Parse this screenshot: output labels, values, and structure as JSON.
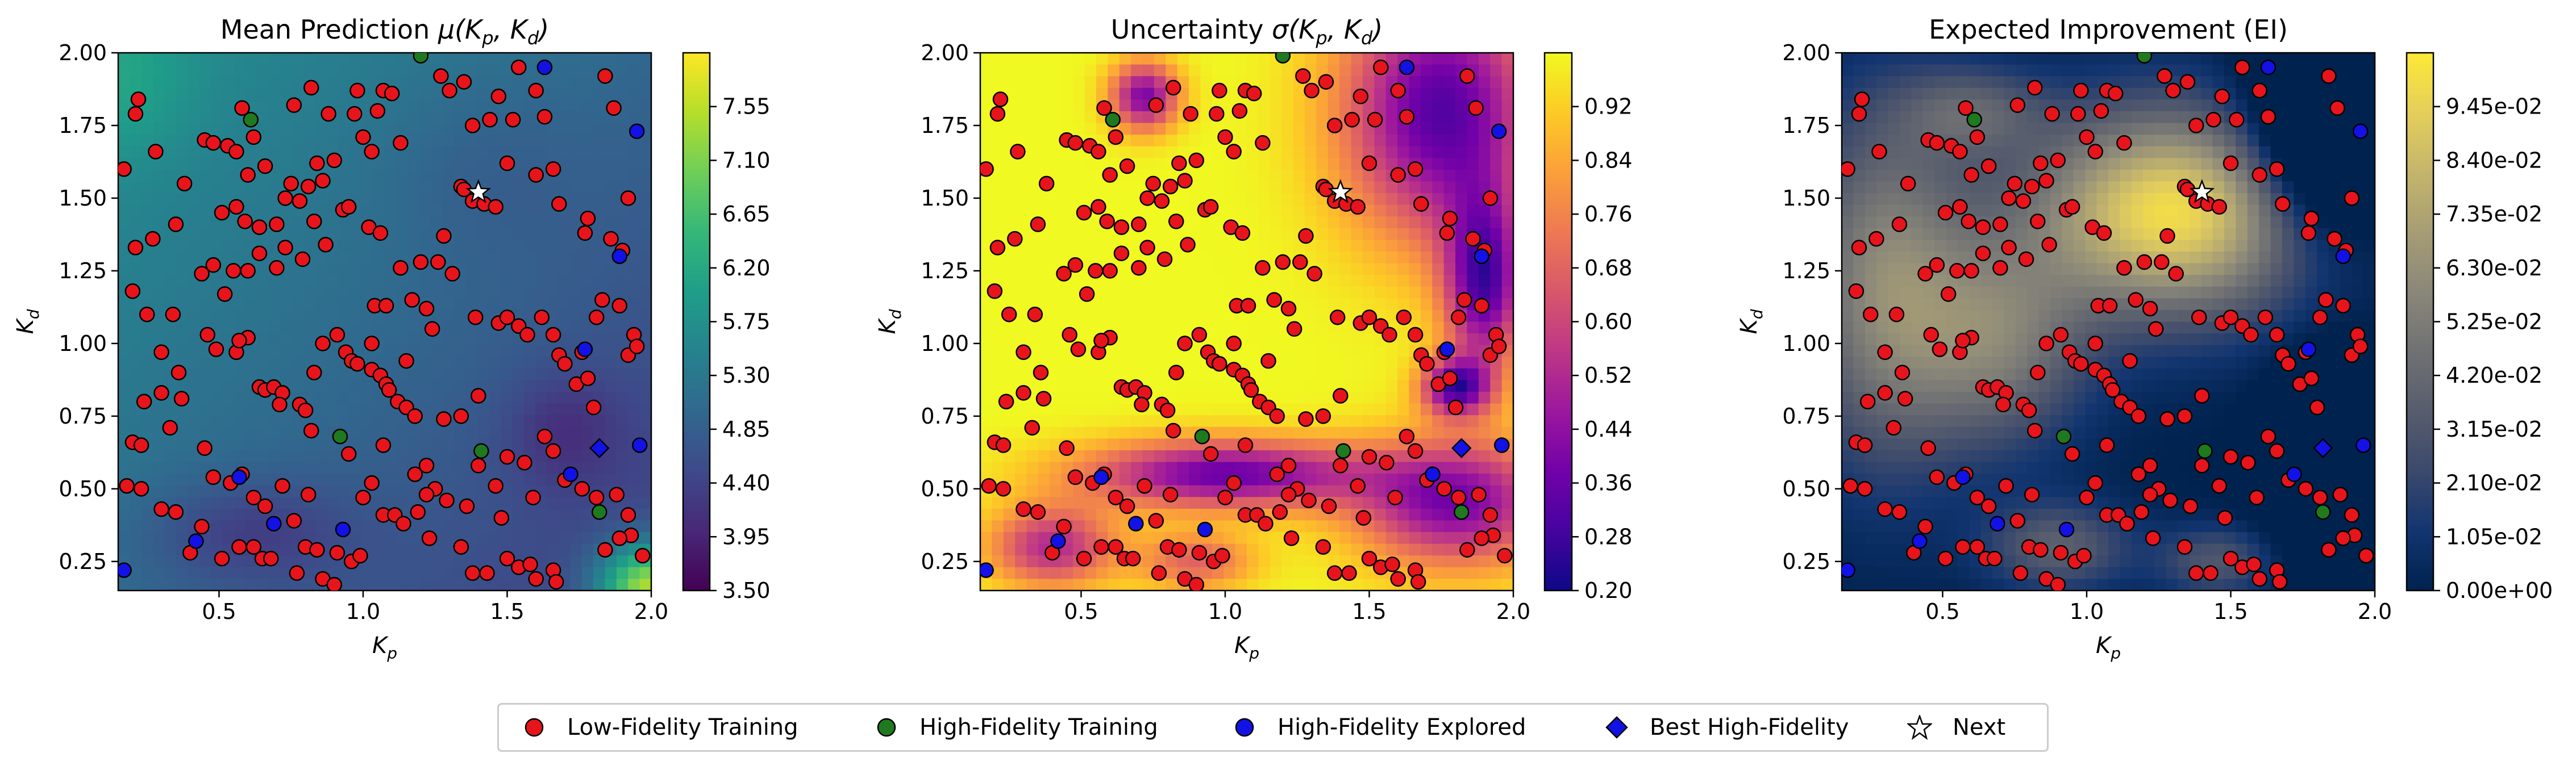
{
  "chart_data": [
    {
      "type": "heatmap",
      "title": "Mean Prediction μ(K_p, K_d)",
      "title_main": "Mean Prediction ",
      "title_math": "μ(K",
      "xlabel": "K_p",
      "ylabel": "K_d",
      "xlim": [
        0.15,
        2.0
      ],
      "ylim": [
        0.15,
        2.0
      ],
      "xticks": [
        "0.5",
        "1.0",
        "1.5",
        "2.0"
      ],
      "yticks": [
        "0.25",
        "0.50",
        "0.75",
        "1.00",
        "1.25",
        "1.50",
        "1.75",
        "2.00"
      ],
      "colormap": "viridis",
      "colorbar_range": [
        3.5,
        8.0
      ],
      "colorbar_ticks": [
        "3.50",
        "3.95",
        "4.40",
        "4.85",
        "5.30",
        "5.75",
        "6.20",
        "6.65",
        "7.10",
        "7.55"
      ]
    },
    {
      "type": "heatmap",
      "title": "Uncertainty σ(K_p, K_d)",
      "title_main": "Uncertainty ",
      "title_math": "σ(K",
      "xlabel": "K_p",
      "ylabel": "K_d",
      "xlim": [
        0.15,
        2.0
      ],
      "ylim": [
        0.15,
        2.0
      ],
      "xticks": [
        "0.5",
        "1.0",
        "1.5",
        "2.0"
      ],
      "yticks": [
        "0.25",
        "0.50",
        "0.75",
        "1.00",
        "1.25",
        "1.50",
        "1.75",
        "2.00"
      ],
      "colormap": "plasma",
      "colorbar_range": [
        0.2,
        1.0
      ],
      "colorbar_ticks": [
        "0.20",
        "0.28",
        "0.36",
        "0.44",
        "0.52",
        "0.60",
        "0.68",
        "0.76",
        "0.84",
        "0.92"
      ]
    },
    {
      "type": "heatmap",
      "title": "Expected Improvement (EI)",
      "title_main": "Expected Improvement (EI)",
      "title_math": "",
      "xlabel": "K_p",
      "ylabel": "K_d",
      "xlim": [
        0.15,
        2.0
      ],
      "ylim": [
        0.15,
        2.0
      ],
      "xticks": [
        "0.5",
        "1.0",
        "1.5",
        "2.0"
      ],
      "yticks": [
        "0.25",
        "0.50",
        "0.75",
        "1.00",
        "1.25",
        "1.50",
        "1.75",
        "2.00"
      ],
      "colormap": "cividis",
      "colorbar_range": [
        0.0,
        0.105
      ],
      "colorbar_ticks": [
        "0.00e+00",
        "1.05e-02",
        "2.10e-02",
        "3.15e-02",
        "4.20e-02",
        "5.25e-02",
        "6.30e-02",
        "7.35e-02",
        "8.40e-02",
        "9.45e-02"
      ]
    }
  ],
  "points": {
    "low_fidelity": [
      [
        0.17,
        1.6
      ],
      [
        0.21,
        1.79
      ],
      [
        0.22,
        1.84
      ],
      [
        0.28,
        1.66
      ],
      [
        0.35,
        1.41
      ],
      [
        0.21,
        1.33
      ],
      [
        0.2,
        1.18
      ],
      [
        0.25,
        1.1
      ],
      [
        0.34,
        1.1
      ],
      [
        0.27,
        1.36
      ],
      [
        0.3,
        0.97
      ],
      [
        0.36,
        0.9
      ],
      [
        0.24,
        0.8
      ],
      [
        0.3,
        0.83
      ],
      [
        0.37,
        0.81
      ],
      [
        0.33,
        0.71
      ],
      [
        0.45,
        0.64
      ],
      [
        0.48,
        0.54
      ],
      [
        0.2,
        0.66
      ],
      [
        0.23,
        0.65
      ],
      [
        0.18,
        0.51
      ],
      [
        0.23,
        0.5
      ],
      [
        0.3,
        0.43
      ],
      [
        0.35,
        0.42
      ],
      [
        0.4,
        0.28
      ],
      [
        0.44,
        0.37
      ],
      [
        0.45,
        1.7
      ],
      [
        0.48,
        1.69
      ],
      [
        0.53,
        1.68
      ],
      [
        0.56,
        1.66
      ],
      [
        0.58,
        1.81
      ],
      [
        0.6,
        1.58
      ],
      [
        0.62,
        1.71
      ],
      [
        0.51,
        1.45
      ],
      [
        0.56,
        1.47
      ],
      [
        0.59,
        1.42
      ],
      [
        0.64,
        1.4
      ],
      [
        0.7,
        1.41
      ],
      [
        0.73,
        1.5
      ],
      [
        0.75,
        1.55
      ],
      [
        0.78,
        1.49
      ],
      [
        0.81,
        1.54
      ],
      [
        0.86,
        1.56
      ],
      [
        0.84,
        1.62
      ],
      [
        0.76,
        1.82
      ],
      [
        0.82,
        1.88
      ],
      [
        0.88,
        1.79
      ],
      [
        0.9,
        1.63
      ],
      [
        0.97,
        1.79
      ],
      [
        1.0,
        1.71
      ],
      [
        1.03,
        1.66
      ],
      [
        1.05,
        1.8
      ],
      [
        1.07,
        1.87
      ],
      [
        1.1,
        1.86
      ],
      [
        0.98,
        1.87
      ],
      [
        1.13,
        1.69
      ],
      [
        0.48,
        1.27
      ],
      [
        0.52,
        1.17
      ],
      [
        0.55,
        1.25
      ],
      [
        0.6,
        1.25
      ],
      [
        0.64,
        1.31
      ],
      [
        0.7,
        1.26
      ],
      [
        0.73,
        1.33
      ],
      [
        0.79,
        1.29
      ],
      [
        0.83,
        1.42
      ],
      [
        0.87,
        1.34
      ],
      [
        0.93,
        1.46
      ],
      [
        0.95,
        1.47
      ],
      [
        1.02,
        1.4
      ],
      [
        1.06,
        1.38
      ],
      [
        1.13,
        1.26
      ],
      [
        1.2,
        1.28
      ],
      [
        1.26,
        1.28
      ],
      [
        1.28,
        1.37
      ],
      [
        1.34,
        1.54
      ],
      [
        1.38,
        1.49
      ],
      [
        1.42,
        1.48
      ],
      [
        1.46,
        1.47
      ],
      [
        1.38,
        1.75
      ],
      [
        1.44,
        1.77
      ],
      [
        1.5,
        1.62
      ],
      [
        1.52,
        1.77
      ],
      [
        1.6,
        1.58
      ],
      [
        1.66,
        1.6
      ],
      [
        1.63,
        1.78
      ],
      [
        1.6,
        1.87
      ],
      [
        1.35,
        1.9
      ],
      [
        1.27,
        1.92
      ],
      [
        1.3,
        1.87
      ],
      [
        1.47,
        1.85
      ],
      [
        1.54,
        1.95
      ],
      [
        1.84,
        1.92
      ],
      [
        1.87,
        1.81
      ],
      [
        1.92,
        1.5
      ],
      [
        1.68,
        1.48
      ],
      [
        1.78,
        1.43
      ],
      [
        1.86,
        1.36
      ],
      [
        1.9,
        1.32
      ],
      [
        1.77,
        1.38
      ],
      [
        0.46,
        1.03
      ],
      [
        0.49,
        0.98
      ],
      [
        0.56,
        0.97
      ],
      [
        0.6,
        1.02
      ],
      [
        0.64,
        0.85
      ],
      [
        0.66,
        0.84
      ],
      [
        0.69,
        0.85
      ],
      [
        0.72,
        0.83
      ],
      [
        0.71,
        0.79
      ],
      [
        0.78,
        0.79
      ],
      [
        0.8,
        0.77
      ],
      [
        0.83,
        0.9
      ],
      [
        0.86,
        1.0
      ],
      [
        0.91,
        1.03
      ],
      [
        0.94,
        0.97
      ],
      [
        0.96,
        0.94
      ],
      [
        0.98,
        0.93
      ],
      [
        1.03,
        0.91
      ],
      [
        1.06,
        0.89
      ],
      [
        1.08,
        0.86
      ],
      [
        1.09,
        0.84
      ],
      [
        1.12,
        0.8
      ],
      [
        1.15,
        0.78
      ],
      [
        1.18,
        0.75
      ],
      [
        1.04,
        1.13
      ],
      [
        1.08,
        1.13
      ],
      [
        1.17,
        1.15
      ],
      [
        1.22,
        1.12
      ],
      [
        1.24,
        1.05
      ],
      [
        1.31,
        1.24
      ],
      [
        1.39,
        1.09
      ],
      [
        1.47,
        1.07
      ],
      [
        1.5,
        1.09
      ],
      [
        1.54,
        1.06
      ],
      [
        1.57,
        1.03
      ],
      [
        1.62,
        1.09
      ],
      [
        1.66,
        1.03
      ],
      [
        1.68,
        0.96
      ],
      [
        1.7,
        0.93
      ],
      [
        1.74,
        0.86
      ],
      [
        1.78,
        0.88
      ],
      [
        1.8,
        0.78
      ],
      [
        1.81,
        1.09
      ],
      [
        1.83,
        1.15
      ],
      [
        1.89,
        1.13
      ],
      [
        1.94,
        1.03
      ],
      [
        1.92,
        0.96
      ],
      [
        0.58,
        0.55
      ],
      [
        0.54,
        0.52
      ],
      [
        0.62,
        0.47
      ],
      [
        0.66,
        0.44
      ],
      [
        0.72,
        0.51
      ],
      [
        0.81,
        0.48
      ],
      [
        0.76,
        0.39
      ],
      [
        0.8,
        0.3
      ],
      [
        0.84,
        0.29
      ],
      [
        0.91,
        0.28
      ],
      [
        0.96,
        0.25
      ],
      [
        0.99,
        0.27
      ],
      [
        0.51,
        0.26
      ],
      [
        0.57,
        0.3
      ],
      [
        0.62,
        0.3
      ],
      [
        0.65,
        0.26
      ],
      [
        0.68,
        0.26
      ],
      [
        0.77,
        0.21
      ],
      [
        0.86,
        0.19
      ],
      [
        0.9,
        0.17
      ],
      [
        1.07,
        0.41
      ],
      [
        1.11,
        0.41
      ],
      [
        1.14,
        0.38
      ],
      [
        1.19,
        0.42
      ],
      [
        1.25,
        0.5
      ],
      [
        1.29,
        0.46
      ],
      [
        1.23,
        0.33
      ],
      [
        1.34,
        0.3
      ],
      [
        1.38,
        0.21
      ],
      [
        1.43,
        0.21
      ],
      [
        1.5,
        0.26
      ],
      [
        1.54,
        0.23
      ],
      [
        1.58,
        0.24
      ],
      [
        1.6,
        0.19
      ],
      [
        1.66,
        0.22
      ],
      [
        1.48,
        0.4
      ],
      [
        1.46,
        0.51
      ],
      [
        1.4,
        0.58
      ],
      [
        1.5,
        0.61
      ],
      [
        1.56,
        0.59
      ],
      [
        1.63,
        0.68
      ],
      [
        1.66,
        0.63
      ],
      [
        1.7,
        0.53
      ],
      [
        1.76,
        0.5
      ],
      [
        1.81,
        0.47
      ],
      [
        1.88,
        0.48
      ],
      [
        1.92,
        0.41
      ],
      [
        1.93,
        0.34
      ],
      [
        1.89,
        0.33
      ],
      [
        1.84,
        0.29
      ],
      [
        1.97,
        0.27
      ],
      [
        1.4,
        0.82
      ],
      [
        1.34,
        0.75
      ],
      [
        1.28,
        0.74
      ],
      [
        1.22,
        0.58
      ],
      [
        1.18,
        0.55
      ],
      [
        1.03,
        0.52
      ],
      [
        1.0,
        0.47
      ],
      [
        1.15,
        0.94
      ],
      [
        1.03,
        1.0
      ],
      [
        1.35,
        1.53
      ],
      [
        0.44,
        1.24
      ],
      [
        0.57,
        1.01
      ],
      [
        0.82,
        0.7
      ],
      [
        0.95,
        0.62
      ],
      [
        1.22,
        0.48
      ],
      [
        1.07,
        0.65
      ],
      [
        1.36,
        0.44
      ],
      [
        1.59,
        0.47
      ],
      [
        1.76,
        0.97
      ],
      [
        1.67,
        0.18
      ],
      [
        1.95,
        0.99
      ],
      [
        0.38,
        1.55
      ],
      [
        0.66,
        1.61
      ]
    ],
    "high_fidelity_training": [
      [
        0.61,
        1.77
      ],
      [
        1.2,
        1.99
      ],
      [
        0.92,
        0.68
      ],
      [
        1.41,
        0.63
      ],
      [
        1.82,
        0.42
      ]
    ],
    "high_fidelity_explored": [
      [
        1.63,
        1.95
      ],
      [
        1.89,
        1.3
      ],
      [
        1.95,
        1.73
      ],
      [
        1.77,
        0.98
      ],
      [
        1.72,
        0.55
      ],
      [
        1.96,
        0.65
      ],
      [
        0.57,
        0.54
      ],
      [
        0.69,
        0.38
      ],
      [
        0.93,
        0.36
      ],
      [
        0.42,
        0.32
      ],
      [
        0.17,
        0.22
      ]
    ],
    "best_high_fidelity": [
      [
        1.82,
        0.64
      ]
    ],
    "next": [
      [
        1.4,
        1.52
      ]
    ]
  },
  "legend": {
    "items": [
      {
        "label": "Low-Fidelity Training",
        "marker": "circle",
        "color": "#e8141c"
      },
      {
        "label": "High-Fidelity Training",
        "marker": "circle",
        "color": "#1f7a1f"
      },
      {
        "label": "High-Fidelity Explored",
        "marker": "circle",
        "color": "#1212e6"
      },
      {
        "label": "Best High-Fidelity",
        "marker": "diamond",
        "color": "#1212e6"
      },
      {
        "label": "Next",
        "marker": "star",
        "color": "#ffffff"
      }
    ]
  }
}
